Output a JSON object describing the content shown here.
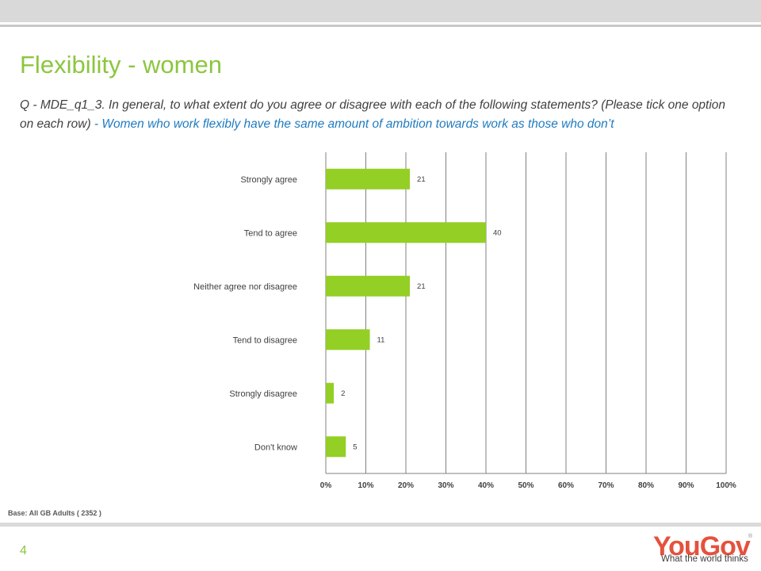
{
  "title": "Flexibility  - women",
  "question": {
    "prefix": "Q - MDE_q1_3. In general, to what extent do you agree or disagree with each of the following statements? (Please tick one option on each row)",
    "highlight": " - Women who work flexibly have the same amount of ambition towards work as those who don’t"
  },
  "base_note": "Base: All GB Adults ( 2352 )",
  "page_number": "4",
  "logo": {
    "wordmark": "YouGov",
    "registered": "®",
    "tagline": "What the world thinks"
  },
  "colors": {
    "accent": "#8cc63f",
    "bar": "#93cf25",
    "question_highlight": "#1f7bc0",
    "logo": "#e5513d"
  },
  "chart_data": {
    "type": "bar",
    "orientation": "horizontal",
    "categories": [
      "Strongly agree",
      "Tend to agree",
      "Neither agree nor disagree",
      "Tend to disagree",
      "Strongly disagree",
      "Don't know"
    ],
    "values": [
      21,
      40,
      21,
      11,
      2,
      5
    ],
    "data_labels": [
      "21",
      "40",
      "21",
      "11",
      "2",
      "5"
    ],
    "xlim": [
      0,
      100
    ],
    "x_ticks": [
      "0%",
      "10%",
      "20%",
      "30%",
      "40%",
      "50%",
      "60%",
      "70%",
      "80%",
      "90%",
      "100%"
    ],
    "grid": true
  }
}
